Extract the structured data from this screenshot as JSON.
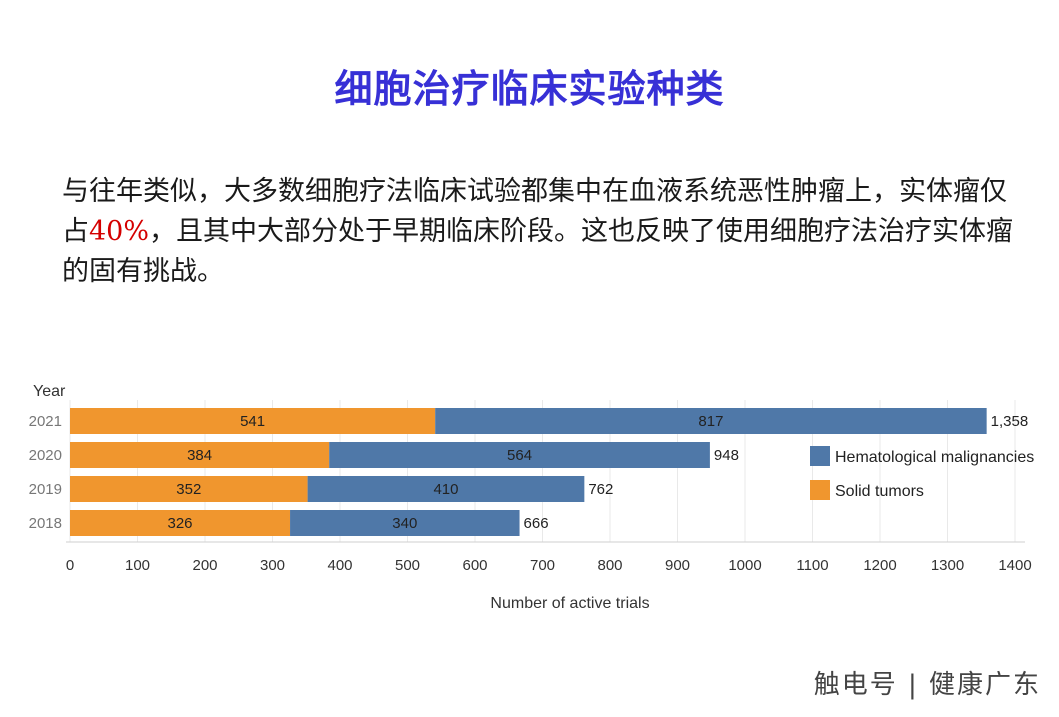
{
  "slide": {
    "title": "细胞治疗临床实验种类",
    "summary_part1": "与往年类似，大多数细胞疗法临床试验都集中在血液系统恶性肿瘤上，实体瘤仅占",
    "summary_highlight": "40%",
    "summary_part2": "，且其中大部分处于早期临床阶段。这也反映了使用细胞疗法治疗实体瘤的固有挑战。",
    "watermark": "触电号 | 健康广东"
  },
  "chart_data": {
    "type": "bar",
    "orientation": "horizontal",
    "stacked": true,
    "ylabel": "Year",
    "xlabel": "Number of active trials",
    "categories": [
      "2021",
      "2020",
      "2019",
      "2018"
    ],
    "series": [
      {
        "name": "Solid tumors",
        "color": "#f0962e",
        "values": [
          541,
          384,
          352,
          326
        ]
      },
      {
        "name": "Hematological malignancies",
        "color": "#4f78a8",
        "values": [
          817,
          564,
          410,
          340
        ]
      }
    ],
    "totals": [
      "1,358",
      "948",
      "762",
      "666"
    ],
    "segment_labels": {
      "Solid tumors": [
        "541",
        "384",
        "352",
        "326"
      ],
      "Hematological malignancies": [
        "817",
        "564",
        "410",
        "340"
      ]
    },
    "xlim": [
      0,
      1400
    ],
    "xticks": [
      "0",
      "100",
      "200",
      "300",
      "400",
      "500",
      "600",
      "700",
      "800",
      "900",
      "1000",
      "1100",
      "1200",
      "1300",
      "1400"
    ],
    "legend_order": [
      "Hematological malignancies",
      "Solid tumors"
    ],
    "legend_position": "right",
    "grid": true
  }
}
